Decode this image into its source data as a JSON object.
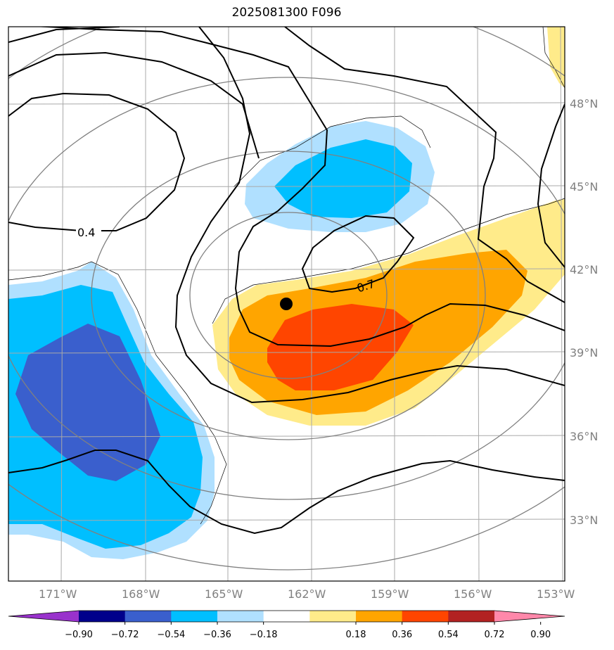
{
  "title": "2025081300 F096",
  "map": {
    "lon_labels": [
      "171°W",
      "168°W",
      "165°W",
      "162°W",
      "159°W",
      "156°W",
      "153°W"
    ],
    "lat_labels": [
      "48°N",
      "45°N",
      "42°N",
      "39°N",
      "36°N",
      "33°N"
    ],
    "contour_labels": [
      "0.4",
      "0.7"
    ],
    "marker": "storm-center-dot"
  },
  "colorbar": {
    "ticks": [
      "−0.90",
      "−0.72",
      "−0.54",
      "−0.36",
      "−0.18",
      "0.18",
      "0.36",
      "0.54",
      "0.72",
      "0.90"
    ],
    "colors": [
      "#9932cc",
      "#00008b",
      "#3a5fcd",
      "#00bfff",
      "#b0e0ff",
      "#ffffff",
      "#ffeb8a",
      "#ffa500",
      "#ff4500",
      "#b22222",
      "#ff88aa"
    ]
  }
}
